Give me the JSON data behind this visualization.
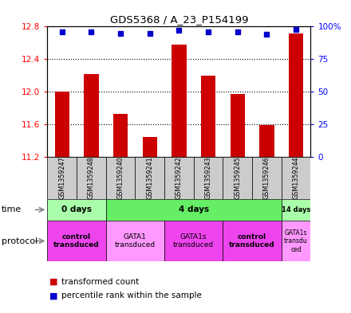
{
  "title": "GDS5368 / A_23_P154199",
  "samples": [
    "GSM1359247",
    "GSM1359248",
    "GSM1359240",
    "GSM1359241",
    "GSM1359242",
    "GSM1359243",
    "GSM1359245",
    "GSM1359246",
    "GSM1359244"
  ],
  "red_values": [
    12.0,
    12.22,
    11.72,
    11.44,
    12.58,
    12.2,
    11.97,
    11.59,
    12.72
  ],
  "blue_values": [
    96,
    96,
    95,
    95,
    97,
    96,
    96,
    94,
    98
  ],
  "ylim_left": [
    11.2,
    12.8
  ],
  "ylim_right": [
    0,
    100
  ],
  "yticks_left": [
    11.2,
    11.6,
    12.0,
    12.4,
    12.8
  ],
  "yticks_right": [
    0,
    25,
    50,
    75,
    100
  ],
  "yticks_right_labels": [
    "0",
    "25",
    "50",
    "75",
    "100%"
  ],
  "bar_color": "#cc0000",
  "dot_color": "#0000cc",
  "bar_width": 0.5,
  "time_groups": [
    {
      "label": "0 days",
      "start": 0,
      "end": 2,
      "color": "#aaffaa"
    },
    {
      "label": "4 days",
      "start": 2,
      "end": 8,
      "color": "#66ee66"
    },
    {
      "label": "14 days",
      "start": 8,
      "end": 9,
      "color": "#aaffaa"
    }
  ],
  "protocol_groups": [
    {
      "label": "control\ntransduced",
      "start": 0,
      "end": 2,
      "color": "#ee44ee",
      "bold": true
    },
    {
      "label": "GATA1\ntransduced",
      "start": 2,
      "end": 4,
      "color": "#ff99ff",
      "bold": false
    },
    {
      "label": "GATA1s\ntransduced",
      "start": 4,
      "end": 6,
      "color": "#ee44ee",
      "bold": false
    },
    {
      "label": "control\ntransduced",
      "start": 6,
      "end": 8,
      "color": "#ee44ee",
      "bold": true
    },
    {
      "label": "GATA1s\ntransdu\nced",
      "start": 8,
      "end": 9,
      "color": "#ff99ff",
      "bold": false
    }
  ],
  "sample_box_color": "#cccccc",
  "grid_yticks": [
    11.6,
    12.0,
    12.4
  ]
}
